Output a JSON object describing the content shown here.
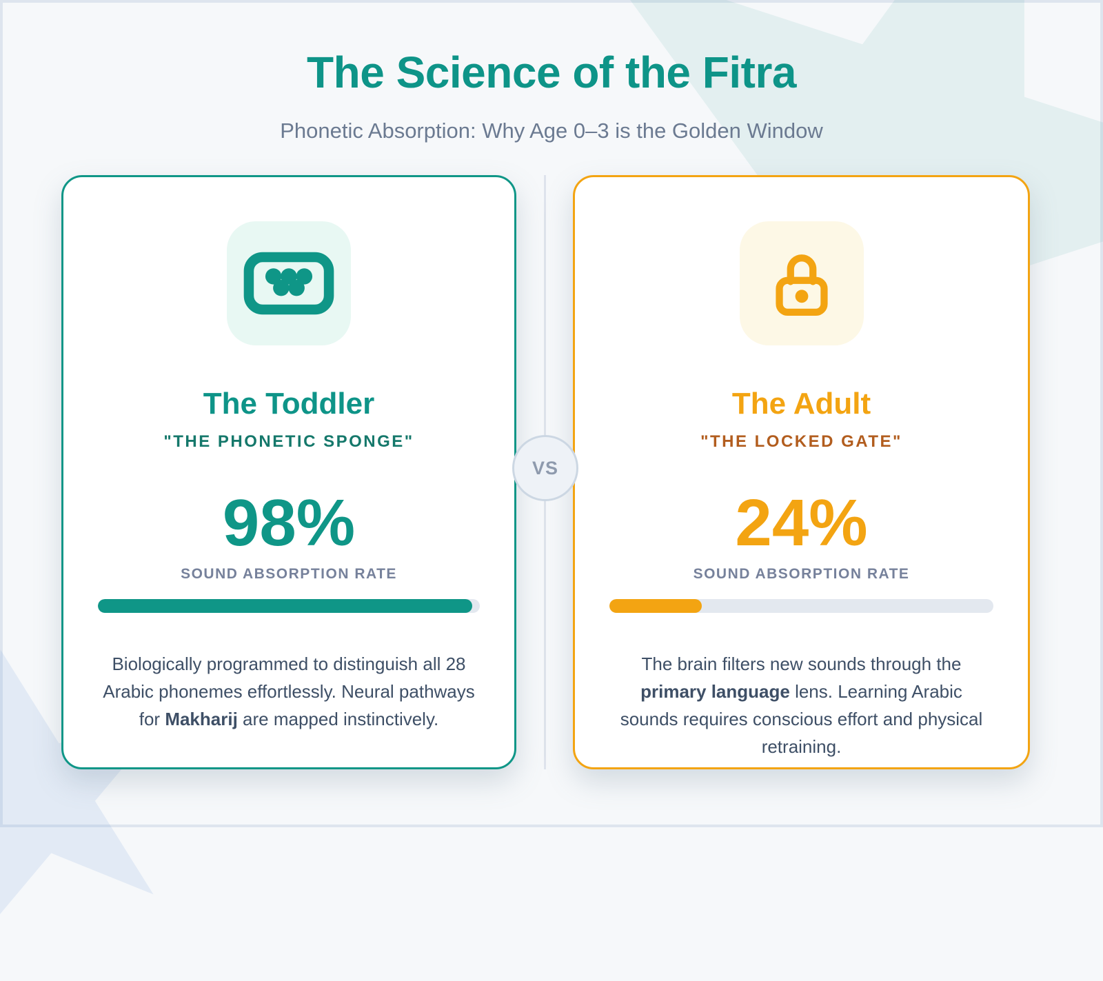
{
  "header": {
    "title": "The Science of the Fitra",
    "subtitle": "Phonetic Absorption: Why Age 0–3 is the Golden Window"
  },
  "vs_badge": {
    "label": "VS"
  },
  "colors": {
    "teal_accent": "#0f9687",
    "teal_dark": "#15786b",
    "orange_accent": "#f3a412",
    "orange_dark": "#b25d1e",
    "body_text": "#3e4f66",
    "stat_label_gray": "#76819b"
  },
  "cards": [
    {
      "id": "toddler",
      "icon": "sponge-icon",
      "title": "The Toddler",
      "quote": "\"THE PHONETIC SPONGE\"",
      "percent": "98%",
      "percent_value": 98,
      "stat_label": "SOUND ABSORPTION RATE",
      "description": {
        "before": "Biologically programmed to distinguish all 28 Arabic phonemes effortlessly. Neural pathways for ",
        "bold": "Makharij",
        "after": " are mapped instinctively."
      }
    },
    {
      "id": "adult",
      "icon": "lock-icon",
      "title": "The Adult",
      "quote": "\"THE LOCKED GATE\"",
      "percent": "24%",
      "percent_value": 24,
      "stat_label": "SOUND ABSORPTION RATE",
      "description": {
        "before": "The brain filters new sounds through the ",
        "bold": "primary language",
        "after": " lens. Learning Arabic sounds requires conscious effort and physical retraining."
      }
    }
  ]
}
